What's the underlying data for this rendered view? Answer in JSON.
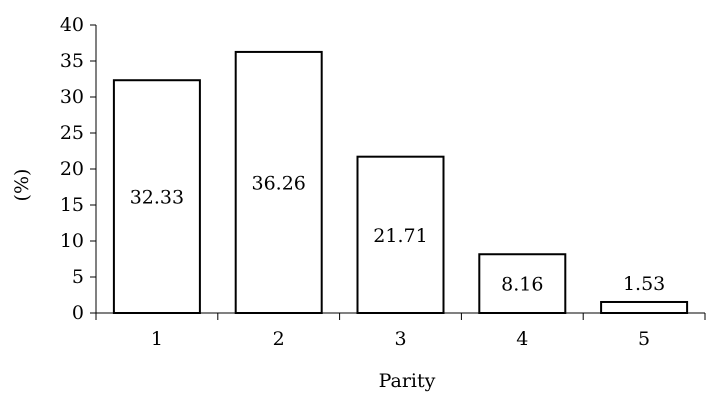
{
  "chart_data": {
    "type": "bar",
    "categories": [
      "1",
      "2",
      "3",
      "4",
      "5"
    ],
    "values": [
      32.33,
      36.26,
      21.71,
      8.16,
      1.53
    ],
    "data_labels": [
      "32.33",
      "36.26",
      "21.71",
      "8.16",
      "1.53"
    ],
    "xlabel": "Parity",
    "ylabel": "(%)",
    "ylim": [
      0,
      40
    ],
    "yticks": [
      "0",
      "5",
      "10",
      "15",
      "20",
      "25",
      "30",
      "35",
      "40"
    ],
    "grid": false,
    "legend": "none"
  }
}
